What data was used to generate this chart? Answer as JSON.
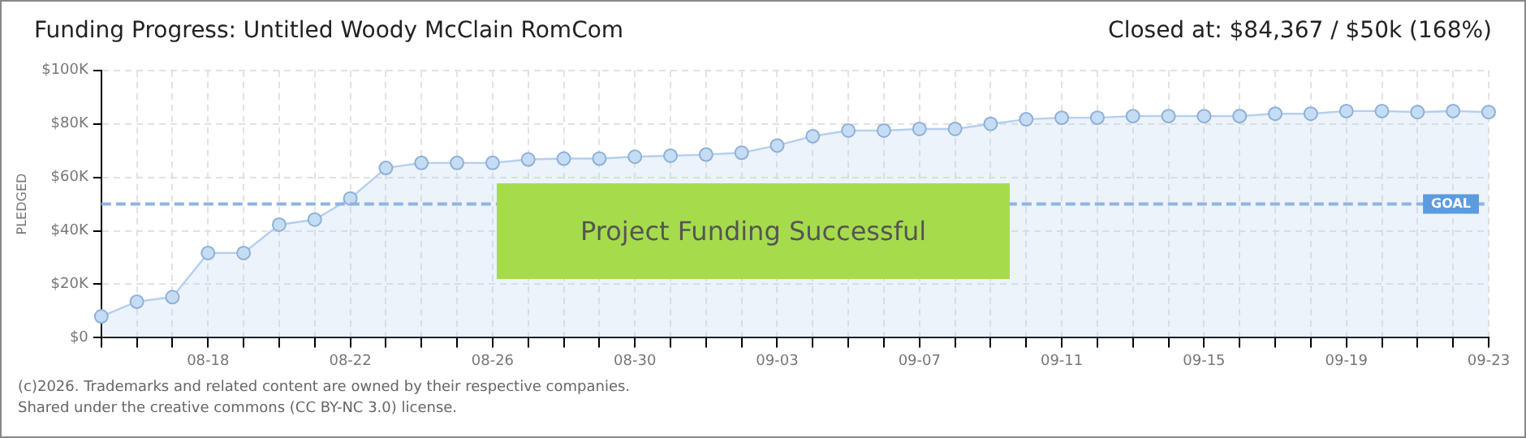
{
  "chart_data": {
    "type": "area",
    "title": "Funding Progress: Untitled Woody McClain RomCom",
    "subtitle": "Closed at: $84,367 / $50k (168%)",
    "ylabel": "PLEDGED",
    "categories": [
      null,
      null,
      null,
      "08-18",
      null,
      null,
      null,
      "08-22",
      null,
      null,
      null,
      "08-26",
      null,
      null,
      null,
      "08-30",
      null,
      null,
      null,
      "09-03",
      null,
      null,
      null,
      "09-07",
      null,
      null,
      null,
      "09-11",
      null,
      null,
      null,
      "09-15",
      null,
      null,
      null,
      "09-19",
      null,
      null,
      null,
      "09-23"
    ],
    "series": [
      {
        "color": "#b3cff0",
        "values": [
          8000,
          13500,
          15200,
          31700,
          31700,
          42300,
          44200,
          52100,
          63500,
          65400,
          65400,
          65400,
          66700,
          67000,
          67000,
          67700,
          68100,
          68500,
          69200,
          71900,
          75400,
          77500,
          77500,
          78100,
          78100,
          80000,
          81700,
          82300,
          82300,
          82900,
          82900,
          82900,
          82900,
          83800,
          83800,
          84800,
          84800,
          84400,
          84800,
          84400
        ]
      }
    ],
    "ylim": [
      0,
      100000
    ],
    "yticks": [
      {
        "value": 0,
        "label": "$0"
      },
      {
        "value": 20000,
        "label": "$20K"
      },
      {
        "value": 40000,
        "label": "$40K"
      },
      {
        "value": 60000,
        "label": "$60K"
      },
      {
        "value": 80000,
        "label": "$80K"
      },
      {
        "value": 100000,
        "label": "$100K"
      }
    ],
    "ref_lines": [
      {
        "axis": "y",
        "value": 50000,
        "label": "GOAL",
        "color": "#8fb4e0",
        "line_style": "dashed"
      }
    ],
    "annotations": [
      "Project Funding Successful",
      "(c)2026. Trademarks and related content are owned by their respective companies.",
      "Shared under the creative commons (CC BY-NC 3.0) license."
    ],
    "grid": true,
    "legend": false,
    "marker": "circle",
    "line_style": "solid"
  }
}
